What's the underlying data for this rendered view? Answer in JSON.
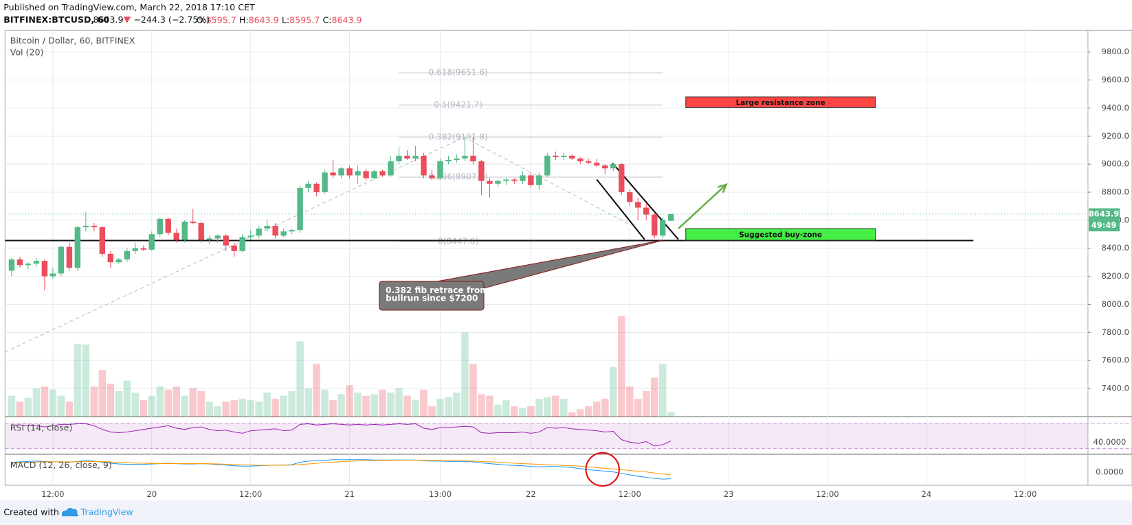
{
  "header": {
    "published": "Published on TradingView.com, March 22, 2018 17:10 CET",
    "symbol": "BITFINEX:BTCUSD, 60",
    "change": "−244.3 (−2.75%)",
    "ohlc_labels": [
      "O:",
      "H:",
      "L:",
      "C:"
    ],
    "pane_title": "Bitcoin / Dollar, 60, BITFINEX",
    "countdown": "49:49"
  },
  "footer": {
    "created": "Created with",
    "brand": "TradingView"
  },
  "chart_data": {
    "type": "candlestick",
    "up_color": "#53b987",
    "down_color": "#eb4d5c",
    "grid": true,
    "xlim": [
      -17.8,
      113.6
    ],
    "ylim": [
      7198,
      9954
    ],
    "xticks": [
      {
        "value": -12,
        "label": "12:00"
      },
      {
        "value": 0,
        "label": "20"
      },
      {
        "value": 12,
        "label": "12:00"
      },
      {
        "value": 24,
        "label": "21"
      },
      {
        "value": 35,
        "label": "13:00"
      },
      {
        "value": 46,
        "label": "22"
      },
      {
        "value": 58,
        "label": "12:00"
      },
      {
        "value": 70,
        "label": "23"
      },
      {
        "value": 82,
        "label": "12:00"
      },
      {
        "value": 94,
        "label": "24"
      },
      {
        "value": 106,
        "label": "12:00"
      }
    ],
    "yticks": [
      {
        "value": 7400,
        "label": "7400.0"
      },
      {
        "value": 7600,
        "label": "7600.0"
      },
      {
        "value": 7800,
        "label": "7800.0"
      },
      {
        "value": 8000,
        "label": "8000.0"
      },
      {
        "value": 8200,
        "label": "8200.0"
      },
      {
        "value": 8400,
        "label": "8400.0"
      },
      {
        "value": 8600,
        "label": "8600.0"
      },
      {
        "value": 8800,
        "label": "8800.0"
      },
      {
        "value": 9000,
        "label": "9000.0"
      },
      {
        "value": 9200,
        "label": "9200.0"
      },
      {
        "value": 9400,
        "label": "9400.0"
      },
      {
        "value": 9600,
        "label": "9600.0"
      },
      {
        "value": 9800,
        "label": "9800.0"
      }
    ],
    "candles": {
      "x": [
        -17,
        -16,
        -15,
        -14,
        -13,
        -12,
        -11,
        -10,
        -9,
        -8,
        -7,
        -6,
        -5,
        -4,
        -3,
        -2,
        -1,
        0,
        1,
        2,
        3,
        4,
        5,
        6,
        7,
        8,
        9,
        10,
        11,
        12,
        13,
        14,
        15,
        16,
        17,
        18,
        19,
        20,
        21,
        22,
        23,
        24,
        25,
        26,
        27,
        28,
        29,
        30,
        31,
        32,
        33,
        34,
        35,
        36,
        37,
        38,
        39,
        40,
        41,
        42,
        43,
        44,
        45,
        46,
        47,
        48,
        49,
        50,
        51,
        52,
        53,
        54,
        55,
        56,
        57,
        58,
        59,
        60,
        61,
        62,
        63
      ],
      "open": [
        8240,
        8320,
        8280,
        8290,
        8310,
        8200,
        8220,
        8410,
        8260,
        8550,
        8560,
        8550,
        8360,
        8300,
        8320,
        8380,
        8400,
        8390,
        8500,
        8610,
        8510,
        8460,
        8590,
        8580,
        8460,
        8470,
        8490,
        8420,
        8380,
        8480,
        8490,
        8540,
        8560,
        8490,
        8520,
        8530,
        8830,
        8860,
        8800,
        8940,
        8920,
        8970,
        8920,
        8950,
        8900,
        8950,
        8920,
        9020,
        9060,
        9040,
        9060,
        8920,
        8900,
        9020,
        9030,
        9040,
        9060,
        9020,
        8880,
        8860,
        8880,
        8890,
        8880,
        8920,
        8850,
        8920,
        9060,
        9050,
        9060,
        9040,
        9020,
        9010,
        8990,
        8970,
        9000,
        8800,
        8730,
        8690,
        8640,
        8490,
        8595.7
      ],
      "high": [
        8330,
        8340,
        8300,
        8330,
        8320,
        8260,
        8420,
        8440,
        8560,
        8660,
        8580,
        8560,
        8380,
        8330,
        8400,
        8440,
        8420,
        8520,
        8620,
        8620,
        8540,
        8600,
        8680,
        8590,
        8490,
        8500,
        8500,
        8440,
        8500,
        8530,
        8560,
        8600,
        8580,
        8540,
        8540,
        8850,
        8880,
        8870,
        8960,
        9030,
        8980,
        8990,
        8990,
        8970,
        8960,
        8960,
        9060,
        9120,
        9100,
        9130,
        9080,
        8960,
        9040,
        9060,
        9070,
        9190,
        9190,
        9030,
        8900,
        8890,
        8900,
        8900,
        8950,
        8940,
        8940,
        9080,
        9090,
        9080,
        9070,
        9050,
        9040,
        9040,
        9000,
        9010,
        9010,
        8820,
        8760,
        8720,
        8650,
        8620,
        8643.9
      ],
      "low": [
        8200,
        8260,
        8250,
        8270,
        8100,
        8180,
        8200,
        8240,
        8240,
        8520,
        8520,
        8340,
        8260,
        8290,
        8300,
        8360,
        8380,
        8380,
        8480,
        8490,
        8440,
        8440,
        8570,
        8440,
        8430,
        8440,
        8380,
        8340,
        8370,
        8460,
        8470,
        8520,
        8470,
        8480,
        8500,
        8510,
        8800,
        8770,
        8790,
        8900,
        8900,
        8900,
        8860,
        8880,
        8890,
        8910,
        8910,
        9000,
        9030,
        9020,
        8900,
        8890,
        8890,
        9000,
        9010,
        9020,
        9000,
        8780,
        8760,
        8840,
        8850,
        8860,
        8860,
        8830,
        8820,
        8910,
        9030,
        9030,
        9030,
        9000,
        9000,
        8980,
        8930,
        8950,
        8780,
        8700,
        8600,
        8600,
        8470,
        8470,
        8595.7
      ],
      "close": [
        8320,
        8280,
        8290,
        8310,
        8200,
        8220,
        8410,
        8260,
        8550,
        8560,
        8550,
        8360,
        8300,
        8320,
        8380,
        8400,
        8390,
        8500,
        8610,
        8510,
        8460,
        8590,
        8580,
        8460,
        8470,
        8490,
        8420,
        8380,
        8480,
        8490,
        8540,
        8560,
        8490,
        8520,
        8530,
        8830,
        8860,
        8800,
        8940,
        8920,
        8970,
        8920,
        8950,
        8900,
        8950,
        8920,
        9020,
        9060,
        9040,
        9060,
        8920,
        8900,
        9020,
        9030,
        9040,
        9060,
        9020,
        8880,
        8860,
        8880,
        8890,
        8880,
        8920,
        8850,
        8920,
        9060,
        9050,
        9060,
        9040,
        9020,
        9010,
        8990,
        8970,
        9000,
        8800,
        8730,
        8690,
        8640,
        8490,
        8600,
        8643.9
      ]
    },
    "volume": {
      "name": "Vol (20)",
      "values": [
        28,
        20,
        25,
        38,
        40,
        36,
        28,
        20,
        97,
        96,
        40,
        62,
        44,
        34,
        48,
        32,
        22,
        28,
        40,
        36,
        40,
        28,
        38,
        34,
        20,
        14,
        20,
        22,
        24,
        22,
        20,
        32,
        24,
        28,
        34,
        100,
        38,
        70,
        36,
        22,
        30,
        42,
        32,
        28,
        30,
        36,
        32,
        38,
        28,
        22,
        36,
        14,
        24,
        26,
        32,
        112,
        70,
        30,
        28,
        16,
        22,
        14,
        12,
        14,
        24,
        26,
        28,
        24,
        6,
        10,
        14,
        20,
        24,
        66,
        134,
        40,
        24,
        34,
        52,
        70,
        6
      ]
    },
    "rsi": {
      "name": "RSI (14, close)",
      "color": "#9c27b0",
      "ylim": [
        21,
        80
      ],
      "band": [
        30,
        70
      ],
      "yticks": [
        {
          "value": 40,
          "label": "40.0000"
        }
      ],
      "values": [
        67,
        67,
        66,
        66,
        64,
        66,
        68,
        68,
        69,
        69,
        66,
        60,
        56,
        55,
        56,
        58,
        60,
        62,
        64,
        66,
        62,
        60,
        63,
        64,
        60,
        58,
        59,
        56,
        54,
        58,
        59,
        60,
        61,
        58,
        59,
        68,
        69,
        67,
        68,
        69,
        68,
        67,
        68,
        67,
        68,
        67,
        68,
        69,
        68,
        69,
        62,
        60,
        63,
        63,
        64,
        65,
        64,
        55,
        54,
        55,
        55,
        55,
        56,
        54,
        56,
        63,
        62,
        63,
        61,
        60,
        59,
        58,
        56,
        57,
        44,
        40,
        38,
        41,
        34,
        36,
        42
      ]
    },
    "macd": {
      "name": "MACD (12, 26, close, 9)",
      "ylim": [
        -72,
        100
      ],
      "yticks": [
        {
          "value": 0,
          "label": "0.0000"
        }
      ],
      "series": [
        {
          "color": "#2196f3",
          "values": [
            55,
            58,
            60,
            62,
            60,
            58,
            58,
            56,
            60,
            64,
            62,
            56,
            50,
            46,
            44,
            44,
            44,
            46,
            48,
            50,
            48,
            46,
            46,
            48,
            46,
            42,
            40,
            36,
            34,
            34,
            36,
            38,
            40,
            40,
            42,
            56,
            62,
            64,
            66,
            70,
            70,
            70,
            70,
            70,
            68,
            68,
            68,
            68,
            68,
            68,
            64,
            62,
            62,
            60,
            60,
            60,
            58,
            52,
            48,
            44,
            40,
            38,
            36,
            32,
            30,
            32,
            32,
            30,
            26,
            20,
            14,
            10,
            6,
            2,
            -6,
            -14,
            -22,
            -28,
            -34,
            -38,
            -36
          ]
        },
        {
          "color": "#ff9800",
          "values": [
            50,
            52,
            54,
            56,
            58,
            58,
            58,
            58,
            58,
            59,
            60,
            59,
            57,
            55,
            53,
            51,
            50,
            49,
            48,
            48,
            48,
            48,
            48,
            48,
            47,
            46,
            45,
            43,
            41,
            40,
            39,
            39,
            39,
            39,
            40,
            43,
            46,
            50,
            53,
            56,
            59,
            61,
            63,
            64,
            65,
            66,
            66,
            67,
            67,
            67,
            66,
            66,
            65,
            64,
            64,
            63,
            62,
            60,
            58,
            56,
            53,
            50,
            48,
            46,
            44,
            42,
            40,
            38,
            36,
            34,
            30,
            26,
            22,
            18,
            14,
            10,
            6,
            2,
            -4,
            -10,
            -14
          ]
        }
      ]
    },
    "drawings": {
      "support": {
        "x": [
          -17.8,
          99.7
        ],
        "price": 8455
      },
      "fib": {
        "x": [
          30,
          62
        ],
        "levels": [
          {
            "label": "0.618(9651.6)",
            "price": 9651.6
          },
          {
            "label": "0.5(9421.7)",
            "price": 9421.7
          },
          {
            "label": "0.382(9191.8)",
            "price": 9191.8
          },
          {
            "label": "0.236(8907.4)",
            "price": 8907.4
          },
          {
            "label": "0(8447.0)",
            "price": 8447.0
          }
        ]
      },
      "fib_trend": {
        "x": [
          -17.8,
          37.9,
          57.8
        ],
        "price": [
          7660,
          9191.8,
          8576
        ]
      },
      "channel": [
        {
          "x": [
            55.9,
            63.9
          ],
          "price": [
            9008,
            8463
          ]
        },
        {
          "x": [
            54,
            59.8
          ],
          "price": [
            8890,
            8463
          ]
        }
      ],
      "arrow": {
        "x": [
          63.9,
          69.7
        ],
        "price": [
          8540,
          8854
        ],
        "color": "#6ab04c"
      },
      "zones": [
        {
          "text": "Large resistance zone",
          "x": [
            64.8,
            87.8
          ],
          "price": [
            9404,
            9480
          ],
          "color": "#ff4444"
        },
        {
          "text": "Suggested buy-zone",
          "x": [
            64.8,
            87.8
          ],
          "price": [
            8457,
            8540
          ],
          "color": "#44ee44"
        }
      ],
      "callout": {
        "lines": [
          "0.382 fib retrace from",
          "bullrun since $7200"
        ],
        "x": [
          27.6,
          40.3
        ],
        "price": [
          7958,
          8164
        ],
        "target": {
          "x": 62,
          "price": 8457
        }
      },
      "circle": {
        "x": 54.7,
        "value": 16
      }
    }
  }
}
